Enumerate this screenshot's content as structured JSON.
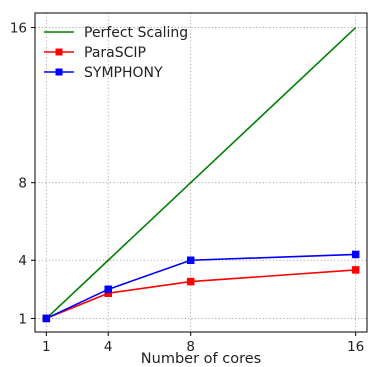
{
  "chart_data": {
    "type": "line",
    "title": "",
    "xlabel": "Number of cores",
    "ylabel": "",
    "x": [
      1,
      4,
      8,
      16
    ],
    "xticks": [
      1,
      4,
      8,
      16
    ],
    "yticks": [
      1,
      4,
      8,
      16
    ],
    "xlim": [
      0.45,
      16.55
    ],
    "ylim": [
      0.3,
      16.75
    ],
    "grid": true,
    "legend_position": "top-left",
    "series": [
      {
        "name": "Perfect Scaling",
        "values": [
          1,
          4,
          8,
          16
        ],
        "color": "#008000",
        "marker": "none"
      },
      {
        "name": "ParaSCIP",
        "values": [
          1,
          2.3,
          2.9,
          3.5
        ],
        "color": "#ff0000",
        "marker": "square"
      },
      {
        "name": "SYMPHONY",
        "values": [
          1,
          2.5,
          4.0,
          4.3
        ],
        "color": "#0000ff",
        "marker": "square"
      }
    ]
  }
}
